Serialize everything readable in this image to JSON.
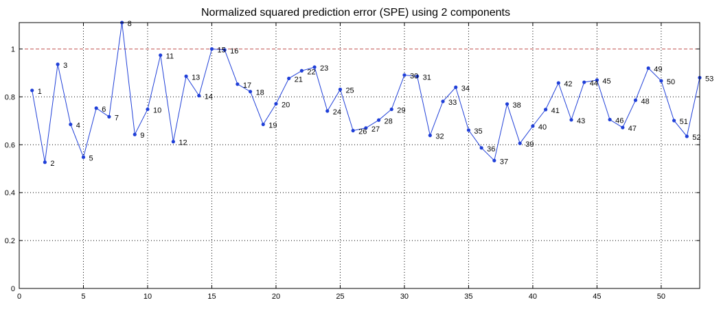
{
  "chart_data": {
    "type": "line",
    "title": "Normalized squared prediction error (SPE) using 2 components",
    "xlabel": "",
    "ylabel": "",
    "xlim": [
      0,
      53
    ],
    "ylim": [
      0,
      1.11
    ],
    "xticks": [
      0,
      5,
      10,
      15,
      20,
      25,
      30,
      35,
      40,
      45,
      50
    ],
    "yticks": [
      0,
      0.2,
      0.4,
      0.6,
      0.8,
      1
    ],
    "ytick_labels": [
      "0",
      "0.2",
      "0.4",
      "0.6",
      "0.8",
      "1"
    ],
    "grid": true,
    "threshold": 1,
    "series": [
      {
        "x": [
          1,
          2,
          3,
          4,
          5,
          6,
          7,
          8,
          9,
          10,
          11,
          12,
          13,
          14,
          15,
          16,
          17,
          18,
          19,
          20,
          21,
          22,
          23,
          24,
          25,
          26,
          27,
          28,
          29,
          30,
          31,
          32,
          33,
          34,
          35,
          36,
          37,
          38,
          39,
          40,
          41,
          42,
          43,
          44,
          45,
          46,
          47,
          48,
          49,
          50,
          51,
          52,
          53
        ],
        "values": [
          0.827,
          0.527,
          0.936,
          0.685,
          0.548,
          0.753,
          0.717,
          1.11,
          0.643,
          0.748,
          0.974,
          0.613,
          0.886,
          0.805,
          1.0,
          0.996,
          0.853,
          0.822,
          0.685,
          0.771,
          0.877,
          0.909,
          0.924,
          0.741,
          0.831,
          0.659,
          0.67,
          0.703,
          0.748,
          0.891,
          0.886,
          0.639,
          0.781,
          0.84,
          0.661,
          0.587,
          0.534,
          0.77,
          0.606,
          0.678,
          0.747,
          0.858,
          0.704,
          0.861,
          0.87,
          0.705,
          0.672,
          0.786,
          0.92,
          0.867,
          0.701,
          0.635,
          0.88
        ],
        "labels": [
          "1",
          "2",
          "3",
          "4",
          "5",
          "6",
          "7",
          "8",
          "9",
          "10",
          "11",
          "12",
          "13",
          "14",
          "15",
          "16",
          "17",
          "18",
          "19",
          "20",
          "21",
          "22",
          "23",
          "24",
          "25",
          "26",
          "27",
          "28",
          "29",
          "30",
          "31",
          "32",
          "33",
          "34",
          "35",
          "36",
          "37",
          "38",
          "39",
          "40",
          "41",
          "42",
          "43",
          "44",
          "45",
          "46",
          "47",
          "48",
          "49",
          "50",
          "51",
          "52",
          "53"
        ]
      }
    ]
  },
  "colors": {
    "series": "#1f3fd8",
    "threshold": "#c0504d",
    "axis": "#000000",
    "grid": "#000000"
  }
}
